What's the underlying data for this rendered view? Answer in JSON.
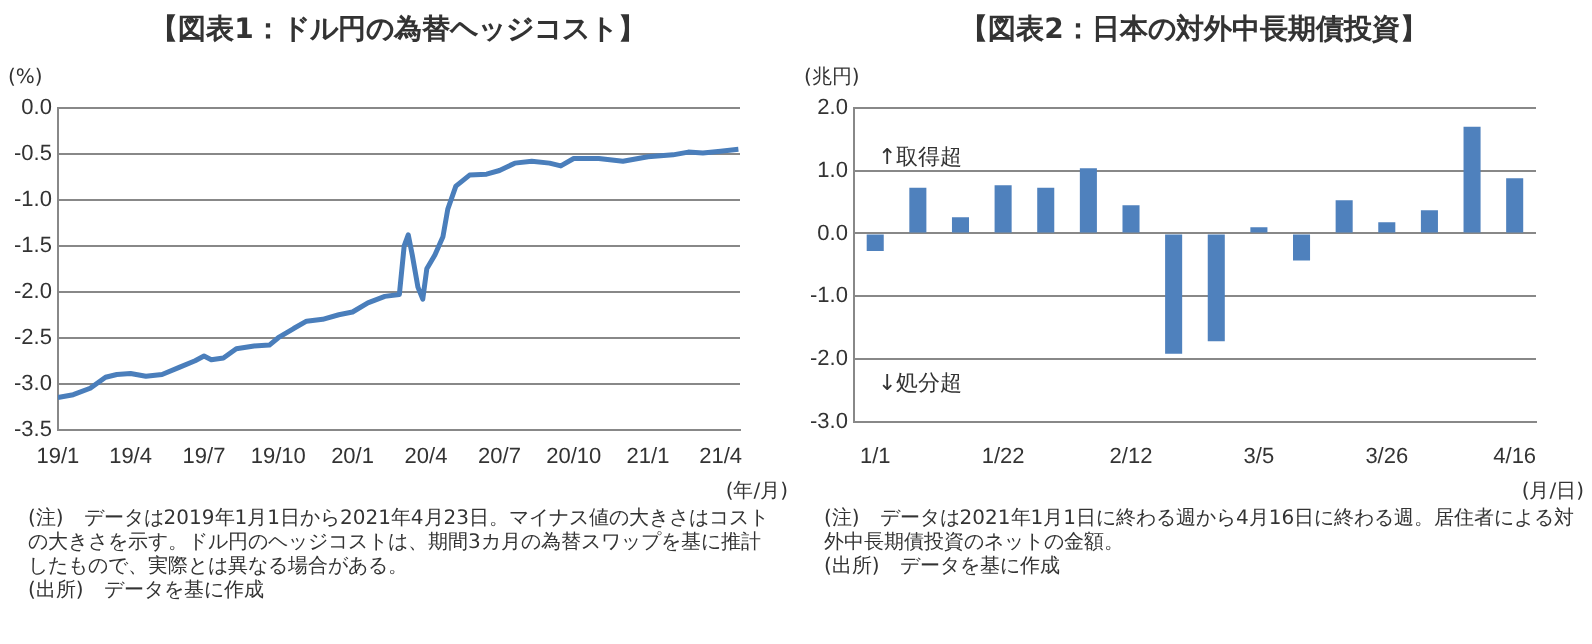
{
  "chart_data": [
    {
      "type": "line",
      "title": "【図表1：ドル円の為替ヘッジコスト】",
      "ylabel": "(%)",
      "xlabel": "(年/月)",
      "color": "#4a7ebb",
      "grid": "y",
      "legend": false,
      "marker": "none",
      "line_style": "solid",
      "x": [
        "2019-01-01",
        "2019-01-20",
        "2019-02-10",
        "2019-03-01",
        "2019-03-15",
        "2019-04-01",
        "2019-04-20",
        "2019-05-10",
        "2019-06-01",
        "2019-06-20",
        "2019-07-01",
        "2019-07-10",
        "2019-07-25",
        "2019-08-10",
        "2019-09-01",
        "2019-09-20",
        "2019-10-01",
        "2019-10-20",
        "2019-11-05",
        "2019-11-25",
        "2019-12-15",
        "2020-01-01",
        "2020-01-20",
        "2020-02-10",
        "2020-02-28",
        "2020-03-05",
        "2020-03-10",
        "2020-03-15",
        "2020-03-22",
        "2020-03-28",
        "2020-04-02",
        "2020-04-12",
        "2020-04-22",
        "2020-04-28",
        "2020-05-08",
        "2020-05-25",
        "2020-06-15",
        "2020-07-01",
        "2020-07-20",
        "2020-08-10",
        "2020-09-01",
        "2020-09-15",
        "2020-10-01",
        "2020-11-01",
        "2020-12-01",
        "2021-01-01",
        "2021-02-01",
        "2021-02-20",
        "2021-03-10",
        "2021-04-01",
        "2021-04-23"
      ],
      "values": [
        -3.15,
        -3.12,
        -3.05,
        -2.93,
        -2.9,
        -2.89,
        -2.92,
        -2.9,
        -2.82,
        -2.75,
        -2.7,
        -2.74,
        -2.72,
        -2.62,
        -2.59,
        -2.58,
        -2.5,
        -2.4,
        -2.32,
        -2.3,
        -2.25,
        -2.22,
        -2.12,
        -2.05,
        -2.03,
        -1.5,
        -1.38,
        -1.6,
        -1.95,
        -2.08,
        -1.75,
        -1.6,
        -1.4,
        -1.1,
        -0.85,
        -0.73,
        -0.72,
        -0.68,
        -0.6,
        -0.58,
        -0.6,
        -0.63,
        -0.55,
        -0.55,
        -0.58,
        -0.53,
        -0.51,
        -0.48,
        -0.49,
        -0.47,
        -0.45
      ],
      "xlim": [
        "2019-01-01",
        "2021-04-25"
      ],
      "xticks": [
        {
          "value": "2019-01-01",
          "label": "19/1"
        },
        {
          "value": "2019-04-01",
          "label": "19/4"
        },
        {
          "value": "2019-07-01",
          "label": "19/7"
        },
        {
          "value": "2019-10-01",
          "label": "19/10"
        },
        {
          "value": "2020-01-01",
          "label": "20/1"
        },
        {
          "value": "2020-04-01",
          "label": "20/4"
        },
        {
          "value": "2020-07-01",
          "label": "20/7"
        },
        {
          "value": "2020-10-01",
          "label": "20/10"
        },
        {
          "value": "2021-01-01",
          "label": "21/1"
        },
        {
          "value": "2021-04-01",
          "label": "21/4"
        }
      ],
      "ylim": [
        -3.5,
        0
      ],
      "yticks": [
        {
          "value": -3.5,
          "label": "-3.5"
        },
        {
          "value": -3,
          "label": "-3.0"
        },
        {
          "value": -2.5,
          "label": "-2.5"
        },
        {
          "value": -2,
          "label": "-2.0"
        },
        {
          "value": -1.5,
          "label": "-1.5"
        },
        {
          "value": -1,
          "label": "-1.0"
        },
        {
          "value": -0.5,
          "label": "-0.5"
        },
        {
          "value": 0,
          "label": "0.0"
        }
      ],
      "annotations": [
        "(注)　データは2019年1月1日から2021年4月23日。マイナス値の大きさはコストの大きさを示す。ドル円のヘッジコストは、期間3カ月の為替スワップを基に推計したもので、実際とは異なる場合がある。",
        "(出所)　データを基に作成"
      ]
    },
    {
      "type": "bar",
      "title": "【図表2：日本の対外中長期債投資】",
      "ylabel": "(兆円)",
      "xlabel": "(月/日)",
      "color": "#4f81bd",
      "grid": "y",
      "legend": false,
      "categories": [
        "1/1",
        null,
        null,
        "1/22",
        null,
        null,
        "2/12",
        null,
        null,
        "3/5",
        null,
        null,
        "3/26",
        null,
        null,
        "4/16"
      ],
      "values": [
        -0.28,
        0.73,
        0.26,
        0.77,
        0.73,
        1.04,
        0.45,
        -1.92,
        -1.72,
        0.1,
        -0.43,
        0.53,
        0.18,
        0.37,
        1.7,
        0.88
      ],
      "ylim": [
        -3,
        2
      ],
      "yticks": [
        {
          "value": -3,
          "label": "-3.0"
        },
        {
          "value": -2,
          "label": "-2.0"
        },
        {
          "value": -1,
          "label": "-1.0"
        },
        {
          "value": 0,
          "label": "0.0"
        },
        {
          "value": 1,
          "label": "1.0"
        },
        {
          "value": 2,
          "label": "2.0"
        }
      ],
      "annotations": [
        "↑取得超",
        "↓処分超",
        "(注)　データは2021年1月1日に終わる週から4月16日に終わる週。居住者による対外中長期債投資のネットの金額。",
        "(出所)　データを基に作成"
      ]
    }
  ]
}
